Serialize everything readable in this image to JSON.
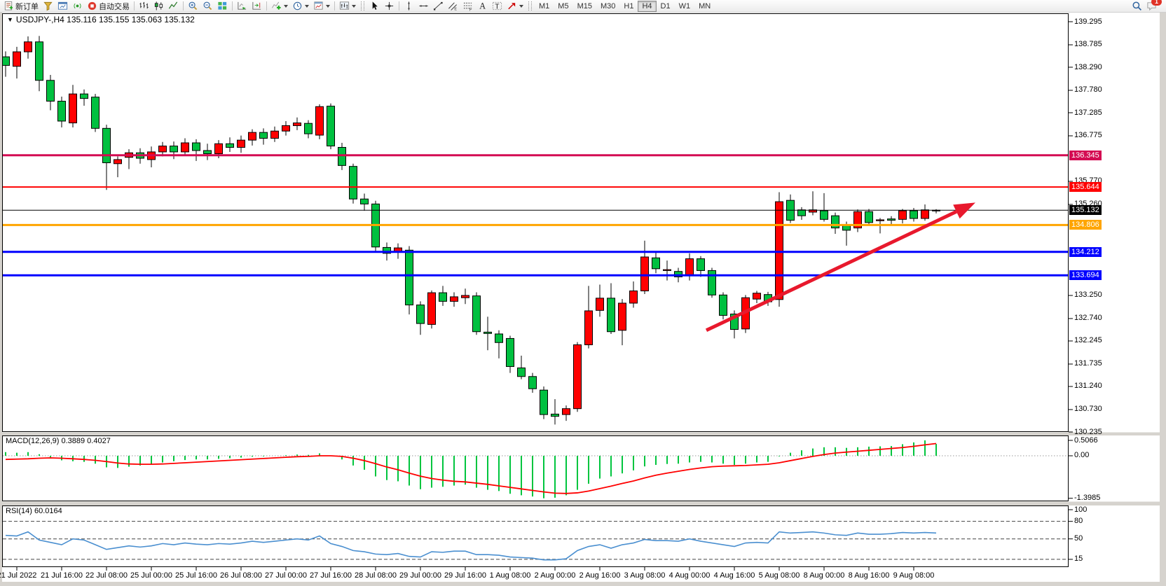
{
  "toolbar": {
    "items": [
      {
        "t": "btn",
        "icon": "new-order-icon",
        "label": "新订单"
      },
      {
        "t": "btn",
        "icon": "funnel-icon"
      },
      {
        "t": "btn",
        "icon": "chart-window-icon"
      },
      {
        "t": "btn",
        "icon": "signal-icon"
      },
      {
        "t": "btn",
        "icon": "autotrade-icon",
        "label": "自动交易"
      },
      {
        "t": "sep"
      },
      {
        "t": "btn",
        "icon": "bar-chart-icon"
      },
      {
        "t": "btn",
        "icon": "candle-chart-icon"
      },
      {
        "t": "btn",
        "icon": "line-chart-icon"
      },
      {
        "t": "sep"
      },
      {
        "t": "btn",
        "icon": "zoom-in-icon"
      },
      {
        "t": "btn",
        "icon": "zoom-out-icon"
      },
      {
        "t": "btn",
        "icon": "tile-windows-icon"
      },
      {
        "t": "sep"
      },
      {
        "t": "btn",
        "icon": "auto-scroll-icon"
      },
      {
        "t": "btn",
        "icon": "chart-shift-icon"
      },
      {
        "t": "sep"
      },
      {
        "t": "btn",
        "icon": "indicators-icon",
        "caret": true
      },
      {
        "t": "btn",
        "icon": "period-icon",
        "caret": true
      },
      {
        "t": "btn",
        "icon": "template-icon",
        "caret": true
      },
      {
        "t": "sep"
      },
      {
        "t": "btn",
        "icon": "chart-type-icon",
        "caret": true
      },
      {
        "t": "grip"
      },
      {
        "t": "btn",
        "icon": "cursor-icon"
      },
      {
        "t": "btn",
        "icon": "crosshair-icon"
      },
      {
        "t": "sep"
      },
      {
        "t": "btn",
        "icon": "vline-icon"
      },
      {
        "t": "btn",
        "icon": "hline-icon"
      },
      {
        "t": "btn",
        "icon": "trendline-icon"
      },
      {
        "t": "btn",
        "icon": "channel-icon"
      },
      {
        "t": "btn",
        "icon": "fibo-icon"
      },
      {
        "t": "btn",
        "icon": "text-icon"
      },
      {
        "t": "btn",
        "icon": "label-icon"
      },
      {
        "t": "btn",
        "icon": "arrows-icon",
        "caret": true
      },
      {
        "t": "grip"
      },
      {
        "t": "timeframes"
      }
    ],
    "timeframes": [
      "M1",
      "M5",
      "M15",
      "M30",
      "H1",
      "H4",
      "D1",
      "W1",
      "MN"
    ],
    "active_timeframe": "H4",
    "chat_badge": "1"
  },
  "chart": {
    "marker": "▼",
    "title": "USDJPY-,H4  135.116 135.155 135.063 135.132"
  },
  "indicators": {
    "macd_text": "MACD(12,26,9) 0.3889 0.4027",
    "rsi_text": "RSI(14) 60.0164"
  },
  "chart_data": [
    {
      "type": "candlestick",
      "title": "USDJPY-,H4",
      "ohlc_current": {
        "open": 135.116,
        "high": 135.155,
        "low": 135.063,
        "close": 135.132
      },
      "ylim": [
        130.235,
        139.295
      ],
      "grid": false,
      "bull_color": "#ff0000",
      "bear_color": "#00c040",
      "wick_color": "#000000",
      "price_ticks": [
        "139.295",
        "138.785",
        "138.290",
        "137.780",
        "137.285",
        "136.775",
        "135.770",
        "135.260",
        "133.250",
        "132.740",
        "132.245",
        "131.735",
        "131.240",
        "130.730",
        "130.235"
      ],
      "hlines": [
        {
          "price": 136.345,
          "label": "136.345",
          "color": "#d40b52",
          "width": 3
        },
        {
          "price": 135.644,
          "label": "135.644",
          "color": "#ff0000",
          "width": 2
        },
        {
          "price": 135.132,
          "label": "135.132",
          "color": "#000000",
          "width": 1
        },
        {
          "price": 134.806,
          "label": "134.806",
          "color": "#ffa500",
          "width": 3
        },
        {
          "price": 134.212,
          "label": "134.212",
          "color": "#0000ff",
          "width": 3
        },
        {
          "price": 133.694,
          "label": "133.694",
          "color": "#0000ff",
          "width": 3
        }
      ],
      "trend_arrow": {
        "from_index": 62.5,
        "from_price": 132.48,
        "to_index": 86.5,
        "to_price": 135.3,
        "color": "#e8192d",
        "width": 5
      },
      "x_labels": [
        "21 Jul 2022",
        "21 Jul 16:00",
        "22 Jul 08:00",
        "25 Jul 00:00",
        "25 Jul 16:00",
        "26 Jul 08:00",
        "27 Jul 00:00",
        "27 Jul 16:00",
        "28 Jul 08:00",
        "29 Jul 00:00",
        "29 Jul 16:00",
        "1 Aug 08:00",
        "2 Aug 00:00",
        "2 Aug 16:00",
        "3 Aug 08:00",
        "4 Aug 00:00",
        "4 Aug 16:00",
        "5 Aug 08:00",
        "8 Aug 00:00",
        "8 Aug 16:00",
        "9 Aug 08:00"
      ],
      "candles": [
        [
          138.52,
          138.64,
          138.08,
          138.33
        ],
        [
          138.31,
          138.74,
          138.04,
          138.63
        ],
        [
          138.63,
          138.97,
          138.48,
          138.85
        ],
        [
          138.85,
          138.98,
          137.76,
          138.0
        ],
        [
          138.0,
          138.12,
          137.34,
          137.54
        ],
        [
          137.54,
          137.64,
          136.96,
          137.1
        ],
        [
          137.06,
          137.9,
          136.96,
          137.7
        ],
        [
          137.7,
          137.8,
          137.44,
          137.6
        ],
        [
          137.63,
          137.7,
          136.86,
          136.94
        ],
        [
          136.94,
          137.02,
          135.58,
          136.18
        ],
        [
          136.16,
          136.32,
          135.86,
          136.25
        ],
        [
          136.3,
          136.48,
          136.04,
          136.4
        ],
        [
          136.4,
          136.5,
          136.16,
          136.28
        ],
        [
          136.25,
          136.54,
          136.08,
          136.42
        ],
        [
          136.42,
          136.64,
          136.32,
          136.55
        ],
        [
          136.55,
          136.65,
          136.26,
          136.42
        ],
        [
          136.42,
          136.72,
          136.34,
          136.62
        ],
        [
          136.62,
          136.7,
          136.22,
          136.45
        ],
        [
          136.45,
          136.6,
          136.24,
          136.38
        ],
        [
          136.38,
          136.68,
          136.28,
          136.6
        ],
        [
          136.6,
          136.74,
          136.42,
          136.52
        ],
        [
          136.52,
          136.78,
          136.4,
          136.68
        ],
        [
          136.68,
          136.92,
          136.56,
          136.85
        ],
        [
          136.85,
          136.94,
          136.58,
          136.72
        ],
        [
          136.72,
          136.98,
          136.64,
          136.88
        ],
        [
          136.88,
          137.1,
          136.78,
          137.0
        ],
        [
          137.0,
          137.18,
          136.9,
          137.06
        ],
        [
          137.05,
          137.12,
          136.72,
          136.82
        ],
        [
          136.79,
          137.47,
          136.7,
          137.42
        ],
        [
          137.43,
          137.49,
          136.48,
          136.55
        ],
        [
          136.52,
          136.62,
          136.02,
          136.12
        ],
        [
          136.1,
          136.16,
          135.28,
          135.38
        ],
        [
          135.38,
          135.5,
          135.12,
          135.27
        ],
        [
          135.27,
          135.34,
          134.2,
          134.32
        ],
        [
          134.31,
          134.42,
          134.02,
          134.18
        ],
        [
          134.22,
          134.4,
          134.06,
          134.3
        ],
        [
          134.25,
          134.34,
          132.83,
          133.04
        ],
        [
          133.04,
          133.12,
          132.38,
          132.63
        ],
        [
          132.61,
          133.36,
          132.52,
          133.31
        ],
        [
          133.31,
          133.46,
          133.02,
          133.12
        ],
        [
          133.12,
          133.32,
          133.0,
          133.22
        ],
        [
          133.2,
          133.4,
          133.06,
          133.25
        ],
        [
          133.24,
          133.32,
          132.38,
          132.45
        ],
        [
          132.44,
          132.78,
          132.04,
          132.41
        ],
        [
          132.4,
          132.48,
          131.86,
          132.21
        ],
        [
          132.3,
          132.36,
          131.54,
          131.68
        ],
        [
          131.65,
          131.92,
          131.4,
          131.46
        ],
        [
          131.46,
          131.54,
          131.1,
          131.19
        ],
        [
          131.16,
          131.24,
          130.52,
          130.62
        ],
        [
          130.63,
          130.96,
          130.4,
          130.58
        ],
        [
          130.62,
          130.82,
          130.48,
          130.75
        ],
        [
          130.75,
          132.22,
          130.68,
          132.16
        ],
        [
          132.16,
          133.46,
          132.08,
          132.91
        ],
        [
          132.92,
          133.49,
          132.78,
          133.19
        ],
        [
          133.19,
          133.52,
          132.4,
          132.45
        ],
        [
          132.48,
          133.17,
          132.15,
          133.08
        ],
        [
          133.08,
          133.56,
          132.98,
          133.35
        ],
        [
          133.35,
          134.46,
          133.28,
          134.1
        ],
        [
          134.08,
          134.22,
          133.74,
          133.84
        ],
        [
          133.8,
          134.02,
          133.58,
          133.82
        ],
        [
          133.78,
          133.86,
          133.54,
          133.66
        ],
        [
          133.69,
          134.18,
          133.58,
          134.06
        ],
        [
          134.06,
          134.12,
          133.66,
          133.8
        ],
        [
          133.8,
          133.86,
          133.2,
          133.26
        ],
        [
          133.26,
          133.32,
          132.72,
          132.81
        ],
        [
          132.84,
          132.92,
          132.3,
          132.5
        ],
        [
          132.51,
          133.26,
          132.42,
          133.2
        ],
        [
          133.17,
          133.35,
          133.08,
          133.3
        ],
        [
          133.27,
          133.33,
          133.02,
          133.11
        ],
        [
          133.16,
          135.53,
          133.0,
          135.32
        ],
        [
          135.35,
          135.48,
          134.85,
          134.91
        ],
        [
          135.14,
          135.2,
          134.92,
          135.01
        ],
        [
          135.09,
          135.55,
          135.02,
          135.14
        ],
        [
          135.12,
          135.51,
          134.88,
          134.93
        ],
        [
          135.01,
          135.08,
          134.61,
          134.74
        ],
        [
          134.8,
          134.88,
          134.35,
          134.69
        ],
        [
          134.74,
          135.15,
          134.65,
          135.1
        ],
        [
          135.1,
          135.16,
          134.8,
          134.86
        ],
        [
          134.9,
          134.96,
          134.62,
          134.92
        ],
        [
          134.94,
          135.0,
          134.8,
          134.91
        ],
        [
          134.93,
          135.16,
          134.84,
          135.12
        ],
        [
          135.12,
          135.18,
          134.88,
          134.95
        ],
        [
          134.95,
          135.26,
          134.9,
          135.14
        ],
        [
          135.116,
          135.155,
          135.063,
          135.132
        ]
      ]
    },
    {
      "type": "bar",
      "name": "MACD(12,26,9)",
      "current_values": [
        0.3889,
        0.4027
      ],
      "ylim": [
        -1.3985,
        0.5066
      ],
      "axis_ticks": [
        "0.5066",
        "0.00",
        "-1.3985"
      ],
      "bar_color": "#00c53e",
      "signal_color": "#ff0000",
      "values": [
        0.12,
        0.1,
        0.12,
        0.05,
        -0.05,
        -0.15,
        -0.18,
        -0.2,
        -0.26,
        -0.38,
        -0.4,
        -0.36,
        -0.32,
        -0.28,
        -0.22,
        -0.18,
        -0.14,
        -0.12,
        -0.12,
        -0.1,
        -0.08,
        -0.06,
        -0.03,
        -0.02,
        0.0,
        0.02,
        0.04,
        0.03,
        0.08,
        0.0,
        -0.12,
        -0.32,
        -0.46,
        -0.68,
        -0.8,
        -0.84,
        -0.98,
        -1.1,
        -1.05,
        -1.02,
        -0.98,
        -0.95,
        -1.05,
        -1.12,
        -1.16,
        -1.25,
        -1.3,
        -1.34,
        -1.3985,
        -1.38,
        -1.3,
        -1.12,
        -0.92,
        -0.75,
        -0.68,
        -0.58,
        -0.48,
        -0.35,
        -0.3,
        -0.27,
        -0.26,
        -0.22,
        -0.2,
        -0.22,
        -0.26,
        -0.3,
        -0.26,
        -0.22,
        -0.2,
        -0.02,
        0.1,
        0.18,
        0.24,
        0.28,
        0.28,
        0.26,
        0.28,
        0.3,
        0.31,
        0.32,
        0.38,
        0.44,
        0.5066,
        0.3889
      ],
      "signal": [
        -0.12,
        -0.11,
        -0.1,
        -0.08,
        -0.07,
        -0.08,
        -0.1,
        -0.12,
        -0.15,
        -0.19,
        -0.24,
        -0.27,
        -0.28,
        -0.28,
        -0.27,
        -0.25,
        -0.23,
        -0.21,
        -0.19,
        -0.17,
        -0.15,
        -0.13,
        -0.11,
        -0.09,
        -0.07,
        -0.05,
        -0.03,
        -0.02,
        0.0,
        0.0,
        -0.02,
        -0.08,
        -0.16,
        -0.26,
        -0.37,
        -0.46,
        -0.57,
        -0.67,
        -0.75,
        -0.8,
        -0.84,
        -0.86,
        -0.9,
        -0.94,
        -0.99,
        -1.04,
        -1.09,
        -1.14,
        -1.19,
        -1.23,
        -1.24,
        -1.22,
        -1.16,
        -1.08,
        -1.0,
        -0.91,
        -0.83,
        -0.73,
        -0.64,
        -0.57,
        -0.51,
        -0.45,
        -0.4,
        -0.36,
        -0.34,
        -0.33,
        -0.32,
        -0.3,
        -0.28,
        -0.23,
        -0.16,
        -0.09,
        -0.02,
        0.04,
        0.09,
        0.12,
        0.15,
        0.18,
        0.21,
        0.24,
        0.27,
        0.31,
        0.36,
        0.4027
      ]
    },
    {
      "type": "line",
      "name": "RSI(14)",
      "current_value": 60.0164,
      "ylim": [
        0,
        100
      ],
      "axis_ticks": [
        "100",
        "80",
        "50",
        "15"
      ],
      "levels": [
        80,
        50,
        15
      ],
      "line_color": "#4a8fd0",
      "values": [
        56,
        55,
        62,
        48,
        44,
        40,
        50,
        48,
        40,
        32,
        35,
        38,
        36,
        38,
        42,
        40,
        43,
        41,
        40,
        42,
        41,
        43,
        46,
        44,
        46,
        48,
        50,
        48,
        55,
        42,
        37,
        30,
        28,
        24,
        23,
        25,
        20,
        19,
        28,
        27,
        29,
        29,
        23,
        23,
        22,
        19,
        18,
        17,
        14,
        14,
        16,
        30,
        37,
        40,
        34,
        40,
        43,
        49,
        47,
        47,
        46,
        50,
        46,
        43,
        40,
        37,
        43,
        44,
        43,
        62,
        60,
        61,
        62,
        60,
        57,
        56,
        60,
        58,
        58,
        59,
        61,
        60,
        61,
        60.0164
      ]
    }
  ]
}
